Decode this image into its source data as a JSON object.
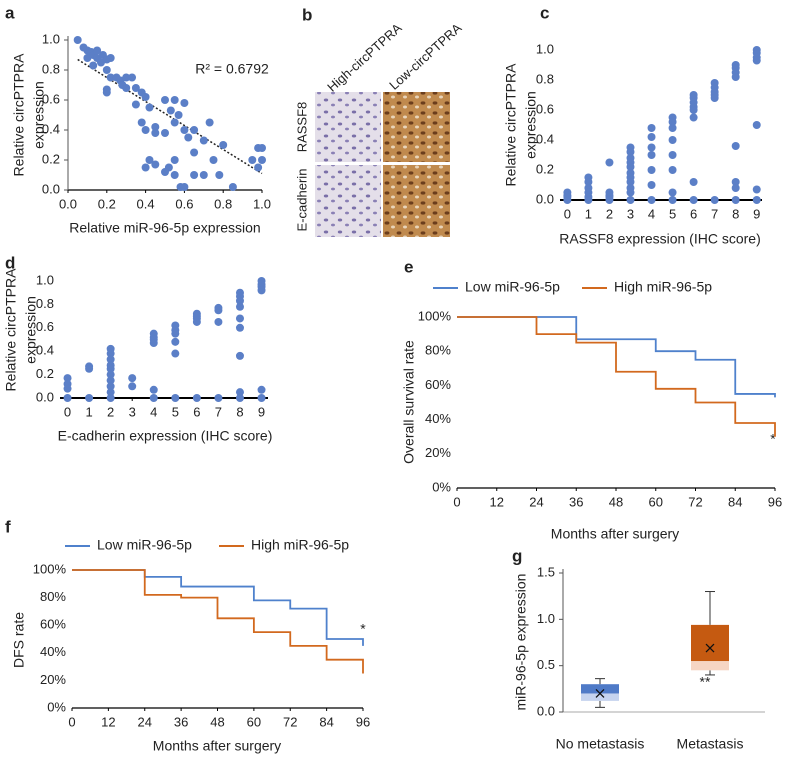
{
  "image_panel": {
    "panel": "b",
    "columns": [
      "High-circPTPRA",
      "Low-circPTPRA"
    ],
    "rows": [
      "RASSF8",
      "E-cadherin"
    ]
  },
  "chart_data": [
    {
      "panel": "a",
      "type": "scatter",
      "color": "#5b7fc7",
      "x": [
        0.05,
        0.08,
        0.1,
        0.12,
        0.1,
        0.13,
        0.15,
        0.15,
        0.17,
        0.18,
        0.2,
        0.2,
        0.22,
        0.13,
        0.2,
        0.2,
        0.22,
        0.25,
        0.27,
        0.28,
        0.3,
        0.33,
        0.3,
        0.35,
        0.38,
        0.35,
        0.4,
        0.42,
        0.38,
        0.4,
        0.45,
        0.5,
        0.55,
        0.53,
        0.55,
        0.57,
        0.45,
        0.5,
        0.6,
        0.6,
        0.62,
        0.65,
        0.7,
        0.75,
        0.8,
        0.55,
        0.52,
        0.55,
        0.5,
        0.45,
        0.4,
        0.42,
        0.58,
        0.6,
        0.65,
        0.7,
        0.78,
        0.85,
        0.95,
        0.98,
        1.0,
        1.0,
        0.98,
        0.73,
        0.65
      ],
      "values": [
        1.0,
        0.95,
        0.93,
        0.92,
        0.88,
        0.9,
        0.93,
        0.88,
        0.85,
        0.9,
        0.87,
        0.8,
        0.88,
        0.83,
        0.67,
        0.65,
        0.75,
        0.75,
        0.73,
        0.7,
        0.75,
        0.75,
        0.68,
        0.68,
        0.65,
        0.57,
        0.62,
        0.55,
        0.45,
        0.4,
        0.42,
        0.6,
        0.6,
        0.53,
        0.45,
        0.5,
        0.38,
        0.38,
        0.58,
        0.4,
        0.35,
        0.4,
        0.33,
        0.2,
        0.3,
        0.2,
        0.15,
        0.1,
        0.12,
        0.17,
        0.15,
        0.2,
        0.02,
        0.02,
        0.1,
        0.1,
        0.1,
        0.02,
        0.2,
        0.28,
        0.28,
        0.2,
        0.15,
        0.45,
        0.25
      ],
      "trendline": {
        "x": [
          0.05,
          1.0
        ],
        "values": [
          0.87,
          0.11
        ]
      },
      "xlim": [
        0,
        1
      ],
      "ylim": [
        0,
        1
      ],
      "xticks": [
        {
          "value": 0,
          "label": "0.0"
        },
        0.2,
        0.4,
        0.6,
        0.8,
        {
          "value": 1,
          "label": "1.0"
        }
      ],
      "yticks": [
        {
          "value": 0,
          "label": "0.0"
        },
        0.2,
        0.4,
        0.6,
        0.8,
        {
          "value": 1,
          "label": "1.0"
        }
      ],
      "xlabel": "Relative miR-96-5p expression",
      "ylabel": [
        "Relative circPTPRA",
        "expression"
      ],
      "annotation": "R² = 0.6792"
    },
    {
      "panel": "c",
      "type": "scatter",
      "color": "#5b7fc7",
      "x": [
        0,
        0,
        0,
        0,
        1,
        1,
        1,
        1,
        1,
        1,
        2,
        2,
        2,
        2,
        2,
        3,
        3,
        3,
        3,
        3,
        3,
        3,
        3,
        3,
        3,
        3,
        4,
        4,
        4,
        4,
        4,
        4,
        4,
        5,
        5,
        5,
        5,
        5,
        5,
        5,
        5,
        6,
        6,
        6,
        6,
        6,
        6,
        6,
        6,
        7,
        7,
        7,
        7,
        7,
        7,
        8,
        8,
        8,
        8,
        8,
        8,
        8,
        8,
        9,
        9,
        9,
        9,
        9,
        9,
        9
      ],
      "values": [
        0.05,
        0.03,
        0.02,
        0.0,
        0.15,
        0.12,
        0.08,
        0.05,
        0.02,
        0.0,
        0.25,
        0.05,
        0.03,
        0.02,
        0.0,
        0.35,
        0.32,
        0.28,
        0.25,
        0.22,
        0.18,
        0.15,
        0.12,
        0.08,
        0.05,
        0.0,
        0.48,
        0.42,
        0.35,
        0.3,
        0.2,
        0.1,
        0.0,
        0.55,
        0.52,
        0.48,
        0.4,
        0.3,
        0.2,
        0.05,
        0.0,
        0.7,
        0.68,
        0.65,
        0.62,
        0.6,
        0.55,
        0.12,
        0.0,
        0.78,
        0.75,
        0.72,
        0.7,
        0.68,
        0.0,
        0.9,
        0.88,
        0.85,
        0.82,
        0.36,
        0.12,
        0.08,
        0.0,
        1.0,
        0.98,
        0.95,
        0.93,
        0.5,
        0.07,
        0.0
      ],
      "xlim": [
        -0.35,
        9.25
      ],
      "ylim": [
        0,
        1
      ],
      "xticks": [
        0,
        1,
        2,
        3,
        4,
        5,
        6,
        7,
        8,
        9
      ],
      "yticks": [
        {
          "value": 0,
          "label": "0.0"
        },
        0.2,
        0.4,
        0.6,
        0.8,
        {
          "value": 1,
          "label": "1.0"
        }
      ],
      "xlabel": "RASSF8 expression (IHC score)",
      "ylabel": [
        "Relative circPTPRA",
        "expression"
      ]
    },
    {
      "panel": "d",
      "type": "scatter",
      "color": "#5b7fc7",
      "x": [
        0,
        0,
        0,
        0,
        1,
        1,
        1,
        2,
        2,
        2,
        2,
        2,
        2,
        2,
        2,
        2,
        2,
        3,
        3,
        4,
        4,
        4,
        4,
        4,
        4,
        5,
        5,
        5,
        5,
        5,
        5,
        6,
        6,
        6,
        6,
        6,
        7,
        7,
        7,
        7,
        8,
        8,
        8,
        8,
        8,
        8,
        8,
        8,
        8,
        9,
        9,
        9,
        9,
        9,
        9
      ],
      "values": [
        0.17,
        0.12,
        0.08,
        0.0,
        0.27,
        0.25,
        0.0,
        0.42,
        0.38,
        0.33,
        0.28,
        0.25,
        0.2,
        0.15,
        0.1,
        0.05,
        0.0,
        0.17,
        0.1,
        0.55,
        0.52,
        0.5,
        0.47,
        0.07,
        0.0,
        0.62,
        0.58,
        0.55,
        0.48,
        0.38,
        0.0,
        0.72,
        0.7,
        0.68,
        0.65,
        0.0,
        0.77,
        0.75,
        0.65,
        0.0,
        0.9,
        0.87,
        0.83,
        0.78,
        0.68,
        0.6,
        0.36,
        0.05,
        0.0,
        1.0,
        0.97,
        0.95,
        0.92,
        0.07,
        0.0
      ],
      "xlim": [
        -0.35,
        9.3
      ],
      "ylim": [
        0,
        1
      ],
      "xticks": [
        0,
        1,
        2,
        3,
        4,
        5,
        6,
        7,
        8,
        9
      ],
      "yticks": [
        {
          "value": 0,
          "label": "0.0"
        },
        0.2,
        0.4,
        0.6,
        0.8,
        {
          "value": 1,
          "label": "1.0"
        }
      ],
      "xlabel": "E-cadherin expression (IHC score)",
      "ylabel": [
        "Relative circPTPRA",
        "expression"
      ]
    },
    {
      "panel": "e",
      "type": "line",
      "series": [
        {
          "name": "Low miR-96-5p",
          "color": "#4f81cc",
          "x": [
            0,
            36,
            36,
            60,
            60,
            72,
            72,
            84,
            84,
            96,
            96
          ],
          "values": [
            100,
            100,
            87,
            87,
            80,
            80,
            75,
            75,
            55,
            55,
            53
          ]
        },
        {
          "name": "High miR-96-5p",
          "color": "#d2691e",
          "x": [
            0,
            24,
            24,
            36,
            36,
            48,
            48,
            60,
            60,
            72,
            72,
            84,
            84,
            96,
            96
          ],
          "values": [
            100,
            100,
            90,
            90,
            85,
            85,
            68,
            68,
            58,
            58,
            50,
            50,
            38,
            38,
            30
          ]
        }
      ],
      "xlim": [
        0,
        96
      ],
      "ylim": [
        0,
        100
      ],
      "xticks": [
        0,
        12,
        24,
        36,
        48,
        60,
        72,
        84,
        96
      ],
      "yticks": [
        {
          "value": 0,
          "label": "0%"
        },
        {
          "value": 20,
          "label": "20%"
        },
        {
          "value": 40,
          "label": "40%"
        },
        {
          "value": 60,
          "label": "60%"
        },
        {
          "value": 80,
          "label": "80%"
        },
        {
          "value": 100,
          "label": "100%"
        }
      ],
      "xlabel": "Months after surgery",
      "ylabel": "Overall survival rate",
      "legend_position": "top",
      "annotation": "*"
    },
    {
      "panel": "f",
      "type": "line",
      "series": [
        {
          "name": "Low miR-96-5p",
          "color": "#4f81cc",
          "x": [
            0,
            24,
            24,
            36,
            36,
            60,
            60,
            72,
            72,
            84,
            84,
            96,
            96
          ],
          "values": [
            100,
            100,
            95,
            95,
            88,
            88,
            78,
            78,
            72,
            72,
            50,
            50,
            45
          ]
        },
        {
          "name": "High miR-96-5p",
          "color": "#d2691e",
          "x": [
            0,
            24,
            24,
            36,
            36,
            48,
            48,
            60,
            60,
            72,
            72,
            84,
            84,
            96,
            96
          ],
          "values": [
            100,
            100,
            82,
            82,
            80,
            80,
            65,
            65,
            55,
            55,
            45,
            45,
            35,
            35,
            25
          ]
        }
      ],
      "xlim": [
        0,
        96
      ],
      "ylim": [
        0,
        100
      ],
      "xticks": [
        0,
        12,
        24,
        36,
        48,
        60,
        72,
        84,
        96
      ],
      "yticks": [
        {
          "value": 0,
          "label": "0%"
        },
        {
          "value": 20,
          "label": "20%"
        },
        {
          "value": 40,
          "label": "40%"
        },
        {
          "value": 60,
          "label": "60%"
        },
        {
          "value": 80,
          "label": "80%"
        },
        {
          "value": 100,
          "label": "100%"
        }
      ],
      "xlabel": "Months after surgery",
      "ylabel": "DFS rate",
      "legend_position": "top",
      "annotation": "*"
    },
    {
      "panel": "g",
      "type": "box",
      "categories": [
        "No metastasis",
        "Metastasis"
      ],
      "boxes": [
        {
          "min": 0.05,
          "q1": 0.12,
          "median": 0.2,
          "q3": 0.3,
          "max": 0.36,
          "mean": 0.2,
          "color": "#4f7ac7",
          "light_color": "#c5d3ef"
        },
        {
          "min": 0.4,
          "q1": 0.45,
          "median": 0.55,
          "q3": 0.94,
          "max": 1.3,
          "mean": 0.69,
          "color": "#c55a11",
          "light_color": "#f6d5c3"
        }
      ],
      "ylim": [
        0,
        1.5
      ],
      "yticks": [
        {
          "value": 0,
          "label": "0.0"
        },
        0.5,
        {
          "value": 1,
          "label": "1.0"
        },
        1.5
      ],
      "ylabel": "miR-96-5p expression",
      "annotation": "**"
    }
  ]
}
